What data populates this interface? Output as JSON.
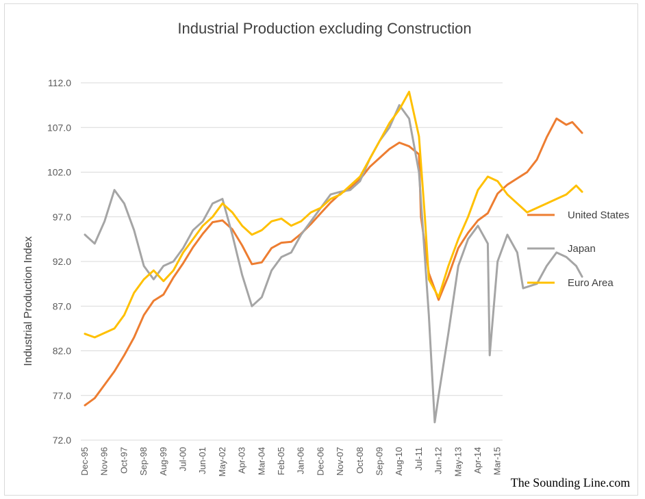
{
  "chart_data": {
    "type": "line",
    "title": "Industrial Production excluding Construction",
    "ylabel": "Industrial Production Index",
    "xlabel": "",
    "ylim": [
      72.0,
      112.0
    ],
    "y_ticks": [
      "112.0",
      "107.0",
      "102.0",
      "97.0",
      "92.0",
      "87.0",
      "82.0",
      "77.0",
      "72.0"
    ],
    "x_ticks": [
      "Dec-95",
      "Nov-96",
      "Oct-97",
      "Sep-98",
      "Aug-99",
      "Jul-00",
      "Jun-01",
      "May-02",
      "Apr-03",
      "Mar-04",
      "Feb-05",
      "Jan-06",
      "Dec-06",
      "Nov-07",
      "Oct-08",
      "Sep-09",
      "Aug-10",
      "Jul-11",
      "Jun-12",
      "May-13",
      "Apr-14",
      "Mar-15"
    ],
    "legend_position": "right",
    "grid": true,
    "series": [
      {
        "name": "United States",
        "color": "#ED7D31",
        "points": [
          [
            0,
            75.9
          ],
          [
            0.5,
            76.7
          ],
          [
            1,
            78.2
          ],
          [
            1.5,
            79.7
          ],
          [
            2,
            81.5
          ],
          [
            2.5,
            83.5
          ],
          [
            3,
            86.0
          ],
          [
            3.5,
            87.6
          ],
          [
            4,
            88.3
          ],
          [
            4.5,
            90.2
          ],
          [
            5,
            91.8
          ],
          [
            5.5,
            93.6
          ],
          [
            6,
            95.1
          ],
          [
            6.5,
            96.4
          ],
          [
            7,
            96.6
          ],
          [
            7.5,
            95.6
          ],
          [
            8,
            93.8
          ],
          [
            8.5,
            91.7
          ],
          [
            9,
            91.9
          ],
          [
            9.5,
            93.5
          ],
          [
            10,
            94.1
          ],
          [
            10.5,
            94.2
          ],
          [
            11,
            95.1
          ],
          [
            11.5,
            96.2
          ],
          [
            12,
            97.4
          ],
          [
            12.5,
            98.6
          ],
          [
            13,
            99.6
          ],
          [
            13.5,
            100.2
          ],
          [
            14,
            101.2
          ],
          [
            14.5,
            102.6
          ],
          [
            15,
            103.6
          ],
          [
            15.5,
            104.6
          ],
          [
            16,
            105.3
          ],
          [
            16.5,
            104.9
          ],
          [
            17,
            104.0
          ],
          [
            17.1,
            97.0
          ],
          [
            17.5,
            90.7
          ],
          [
            18,
            87.7
          ],
          [
            18.5,
            90.4
          ],
          [
            19,
            93.5
          ],
          [
            19.5,
            95.2
          ],
          [
            20,
            96.6
          ],
          [
            20.5,
            97.4
          ],
          [
            21,
            99.6
          ],
          [
            21.5,
            100.6
          ],
          [
            22,
            101.3
          ],
          [
            22.5,
            102.0
          ],
          [
            23,
            103.4
          ],
          [
            23.5,
            105.9
          ],
          [
            24,
            108.0
          ],
          [
            24.5,
            107.3
          ],
          [
            24.8,
            107.6
          ],
          [
            25.3,
            106.4
          ]
        ]
      },
      {
        "name": "Japan",
        "color": "#A5A5A5",
        "points": [
          [
            0,
            95.0
          ],
          [
            0.5,
            94.0
          ],
          [
            1,
            96.5
          ],
          [
            1.5,
            100.0
          ],
          [
            2,
            98.5
          ],
          [
            2.5,
            95.5
          ],
          [
            3,
            91.5
          ],
          [
            3.5,
            90.0
          ],
          [
            4,
            91.5
          ],
          [
            4.5,
            92.0
          ],
          [
            5,
            93.5
          ],
          [
            5.5,
            95.5
          ],
          [
            6,
            96.5
          ],
          [
            6.5,
            98.5
          ],
          [
            7,
            99.0
          ],
          [
            7.5,
            95.0
          ],
          [
            8,
            90.5
          ],
          [
            8.5,
            87.0
          ],
          [
            9,
            88.0
          ],
          [
            9.5,
            91.0
          ],
          [
            10,
            92.5
          ],
          [
            10.5,
            93.0
          ],
          [
            11,
            95.0
          ],
          [
            11.5,
            96.5
          ],
          [
            12,
            98.0
          ],
          [
            12.5,
            99.5
          ],
          [
            13,
            99.8
          ],
          [
            13.5,
            100.0
          ],
          [
            14,
            101.0
          ],
          [
            14.5,
            103.5
          ],
          [
            15,
            105.5
          ],
          [
            15.5,
            107.0
          ],
          [
            16,
            109.5
          ],
          [
            16.5,
            108.0
          ],
          [
            17,
            102.0
          ],
          [
            17.5,
            86.0
          ],
          [
            17.8,
            74.0
          ],
          [
            18,
            77.0
          ],
          [
            18.5,
            84.0
          ],
          [
            19,
            91.5
          ],
          [
            19.5,
            94.5
          ],
          [
            20,
            96.0
          ],
          [
            20.5,
            94.0
          ],
          [
            20.6,
            81.5
          ],
          [
            21,
            92.0
          ],
          [
            21.5,
            95.0
          ],
          [
            22,
            93.0
          ],
          [
            22.3,
            89.0
          ],
          [
            23,
            89.5
          ],
          [
            23.5,
            91.5
          ],
          [
            24,
            93.0
          ],
          [
            24.5,
            92.5
          ],
          [
            25,
            91.5
          ],
          [
            25.3,
            90.3
          ]
        ]
      },
      {
        "name": "Euro Area",
        "color": "#FFC000",
        "points": [
          [
            0,
            83.9
          ],
          [
            0.5,
            83.5
          ],
          [
            1,
            84.0
          ],
          [
            1.5,
            84.5
          ],
          [
            2,
            86.0
          ],
          [
            2.5,
            88.5
          ],
          [
            3,
            90.0
          ],
          [
            3.5,
            91.0
          ],
          [
            4,
            89.8
          ],
          [
            4.5,
            91.0
          ],
          [
            5,
            93.0
          ],
          [
            5.5,
            94.5
          ],
          [
            6,
            96.0
          ],
          [
            6.5,
            97.0
          ],
          [
            7,
            98.5
          ],
          [
            7.5,
            97.5
          ],
          [
            8,
            96.0
          ],
          [
            8.5,
            95.0
          ],
          [
            9,
            95.5
          ],
          [
            9.5,
            96.5
          ],
          [
            10,
            96.8
          ],
          [
            10.5,
            96.0
          ],
          [
            11,
            96.5
          ],
          [
            11.5,
            97.5
          ],
          [
            12,
            98.0
          ],
          [
            12.5,
            99.0
          ],
          [
            13,
            99.5
          ],
          [
            13.5,
            100.5
          ],
          [
            14,
            101.5
          ],
          [
            14.5,
            103.5
          ],
          [
            15,
            105.5
          ],
          [
            15.5,
            107.5
          ],
          [
            16,
            109.0
          ],
          [
            16.5,
            111.0
          ],
          [
            17,
            106.0
          ],
          [
            17.3,
            97.0
          ],
          [
            17.5,
            90.0
          ],
          [
            18,
            88.0
          ],
          [
            18.5,
            91.5
          ],
          [
            19,
            94.5
          ],
          [
            19.5,
            97.0
          ],
          [
            20,
            100.0
          ],
          [
            20.5,
            101.5
          ],
          [
            21,
            101.0
          ],
          [
            21.5,
            99.5
          ],
          [
            22,
            98.5
          ],
          [
            22.5,
            97.5
          ],
          [
            23,
            98.0
          ],
          [
            23.5,
            98.5
          ],
          [
            24,
            99.0
          ],
          [
            24.5,
            99.5
          ],
          [
            25,
            100.5
          ],
          [
            25.3,
            99.8
          ]
        ]
      }
    ],
    "watermark": "The Sounding Line.com"
  }
}
